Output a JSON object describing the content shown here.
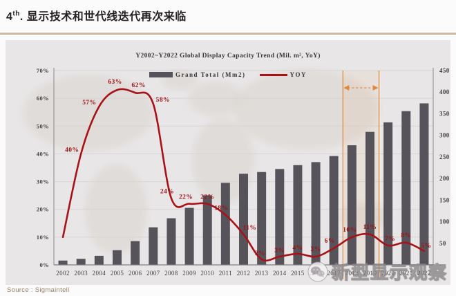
{
  "page": {
    "title_num": "4",
    "title_sup": "th",
    "title_rest": ". 显示技术和世代线迭代再次来临",
    "source": "Source : Sigmaintell",
    "watermark": "新型显示观察"
  },
  "chart_data": {
    "type": "bar+line combo",
    "title": "Y2002~Y2022 Global Display Capacity Trend  (Mil. m², YoY)",
    "legend_position": "top",
    "grid": true,
    "categories": [
      "2002",
      "2003",
      "2004",
      "2005",
      "2006",
      "2007",
      "2008",
      "2009",
      "2010",
      "2011",
      "2012",
      "2013",
      "2014",
      "2015",
      "2016",
      "2017",
      "2018",
      "2019",
      "2020",
      "2021",
      "2022"
    ],
    "legend": [
      {
        "label": "Grand Total (Mm2)",
        "type": "bar",
        "color": "#57535b"
      },
      {
        "label": "YOY",
        "type": "line",
        "color": "#a81116"
      }
    ],
    "series": [
      {
        "name": "Grand Total (Mm2)",
        "type": "bar",
        "axis": "right",
        "values": [
          10,
          14,
          21,
          34,
          55,
          87,
          108,
          132,
          161,
          190,
          211,
          215,
          222,
          231,
          238,
          252,
          277,
          308,
          330,
          356,
          374
        ]
      },
      {
        "name": "YOY",
        "type": "line",
        "axis": "left",
        "values": [
          10,
          40,
          57,
          63,
          62,
          58,
          24,
          22,
          22,
          18,
          11,
          2,
          3,
          4,
          3,
          6,
          10,
          11,
          7,
          8,
          5
        ],
        "labels": [
          "",
          "40%",
          "57%",
          "63%",
          "62%",
          "58%",
          "24%",
          "22%",
          "22%",
          "18%",
          "11%",
          "2%",
          "3%",
          "4%",
          "3%",
          "6%",
          "10%",
          "11%",
          "7%",
          "8%",
          "5%"
        ]
      }
    ],
    "left_axis": {
      "min": 0,
      "max": 70,
      "ticks": [
        "0%",
        "10%",
        "20%",
        "30%",
        "40%",
        "50%",
        "60%",
        "70%"
      ]
    },
    "right_axis": {
      "min": 0,
      "max": 450,
      "ticks": [
        "-",
        "50",
        "100",
        "150",
        "200",
        "250",
        "300",
        "350",
        "400",
        "450"
      ]
    },
    "annotation": {
      "type": "range-highlight",
      "from": "2018",
      "to": "2019",
      "color": "#e0883a"
    }
  }
}
